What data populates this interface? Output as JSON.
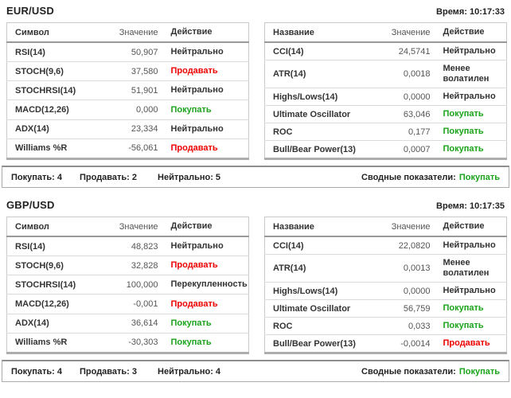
{
  "colors": {
    "buy": "#1ca31c",
    "sell": "#ee0000",
    "neutral": "#333333"
  },
  "sections": [
    {
      "pair": "EUR/USD",
      "time": "Время: 10:17:33",
      "left_table": {
        "headers": {
          "name": "Символ",
          "value": "Значение",
          "action": "Действие"
        },
        "rows": [
          {
            "name": "RSI(14)",
            "value": "50,907",
            "action": "Нейтрально",
            "tone": "neutral"
          },
          {
            "name": "STOCH(9,6)",
            "value": "37,580",
            "action": "Продавать",
            "tone": "sell"
          },
          {
            "name": "STOCHRSI(14)",
            "value": "51,901",
            "action": "Нейтрально",
            "tone": "neutral"
          },
          {
            "name": "MACD(12,26)",
            "value": "0,000",
            "action": "Покупать",
            "tone": "buy"
          },
          {
            "name": "ADX(14)",
            "value": "23,334",
            "action": "Нейтрально",
            "tone": "neutral"
          },
          {
            "name": "Williams %R",
            "value": "-56,061",
            "action": "Продавать",
            "tone": "sell"
          }
        ]
      },
      "right_table": {
        "headers": {
          "name": "Название",
          "value": "Значение",
          "action": "Действие"
        },
        "rows": [
          {
            "name": "CCI(14)",
            "value": "24,5741",
            "action": "Нейтрально",
            "tone": "neutral"
          },
          {
            "name": "ATR(14)",
            "value": "0,0018",
            "action": "Менее волатилен",
            "tone": "neutral"
          },
          {
            "name": "Highs/Lows(14)",
            "value": "0,0000",
            "action": "Нейтрально",
            "tone": "neutral"
          },
          {
            "name": "Ultimate Oscillator",
            "value": "63,046",
            "action": "Покупать",
            "tone": "buy"
          },
          {
            "name": "ROC",
            "value": "0,177",
            "action": "Покупать",
            "tone": "buy"
          },
          {
            "name": "Bull/Bear Power(13)",
            "value": "0,0007",
            "action": "Покупать",
            "tone": "buy"
          }
        ]
      },
      "summary": {
        "buy_label": "Покупать: 4",
        "sell_label": "Продавать: 2",
        "neutral_label": "Нейтрально: 5",
        "overall_label": "Сводные показатели:",
        "overall_value": "Покупать",
        "overall_tone": "buy"
      }
    },
    {
      "pair": "GBP/USD",
      "time": "Время: 10:17:35",
      "left_table": {
        "headers": {
          "name": "Символ",
          "value": "Значение",
          "action": "Действие"
        },
        "rows": [
          {
            "name": "RSI(14)",
            "value": "48,823",
            "action": "Нейтрально",
            "tone": "neutral"
          },
          {
            "name": "STOCH(9,6)",
            "value": "32,828",
            "action": "Продавать",
            "tone": "sell"
          },
          {
            "name": "STOCHRSI(14)",
            "value": "100,000",
            "action": "Перекупленность",
            "tone": "neutral"
          },
          {
            "name": "MACD(12,26)",
            "value": "-0,001",
            "action": "Продавать",
            "tone": "sell"
          },
          {
            "name": "ADX(14)",
            "value": "36,614",
            "action": "Покупать",
            "tone": "buy"
          },
          {
            "name": "Williams %R",
            "value": "-30,303",
            "action": "Покупать",
            "tone": "buy"
          }
        ]
      },
      "right_table": {
        "headers": {
          "name": "Название",
          "value": "Значение",
          "action": "Действие"
        },
        "rows": [
          {
            "name": "CCI(14)",
            "value": "22,0820",
            "action": "Нейтрально",
            "tone": "neutral"
          },
          {
            "name": "ATR(14)",
            "value": "0,0013",
            "action": "Менее волатилен",
            "tone": "neutral"
          },
          {
            "name": "Highs/Lows(14)",
            "value": "0,0000",
            "action": "Нейтрально",
            "tone": "neutral"
          },
          {
            "name": "Ultimate Oscillator",
            "value": "56,759",
            "action": "Покупать",
            "tone": "buy"
          },
          {
            "name": "ROC",
            "value": "0,033",
            "action": "Покупать",
            "tone": "buy"
          },
          {
            "name": "Bull/Bear Power(13)",
            "value": "-0,0014",
            "action": "Продавать",
            "tone": "sell"
          }
        ]
      },
      "summary": {
        "buy_label": "Покупать: 4",
        "sell_label": "Продавать: 3",
        "neutral_label": "Нейтрально: 4",
        "overall_label": "Сводные показатели:",
        "overall_value": "Покупать",
        "overall_tone": "buy"
      }
    }
  ]
}
